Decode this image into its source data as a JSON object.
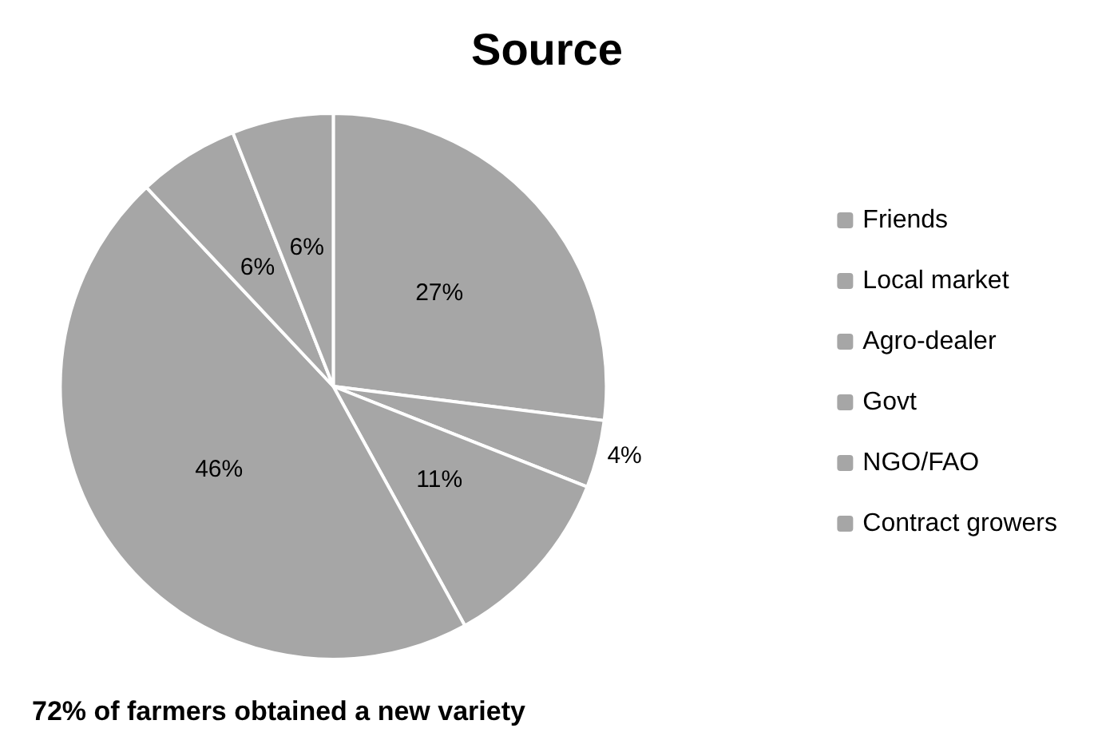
{
  "chart_data": {
    "type": "pie",
    "title": "Source",
    "categories": [
      "Friends",
      "Local market",
      "Agro-dealer",
      "Govt",
      "NGO/FAO",
      "Contract growers"
    ],
    "values": [
      27,
      4,
      11,
      46,
      6,
      6
    ],
    "value_labels": [
      "27%",
      "4%",
      "11%",
      "46%",
      "6%",
      "6%"
    ],
    "colors": [
      "#a6a6a6",
      "#a6a6a6",
      "#a6a6a6",
      "#a6a6a6",
      "#a6a6a6",
      "#a6a6a6"
    ],
    "legend": "right",
    "annotations": [
      "72% of farmers obtained a new variety"
    ]
  }
}
